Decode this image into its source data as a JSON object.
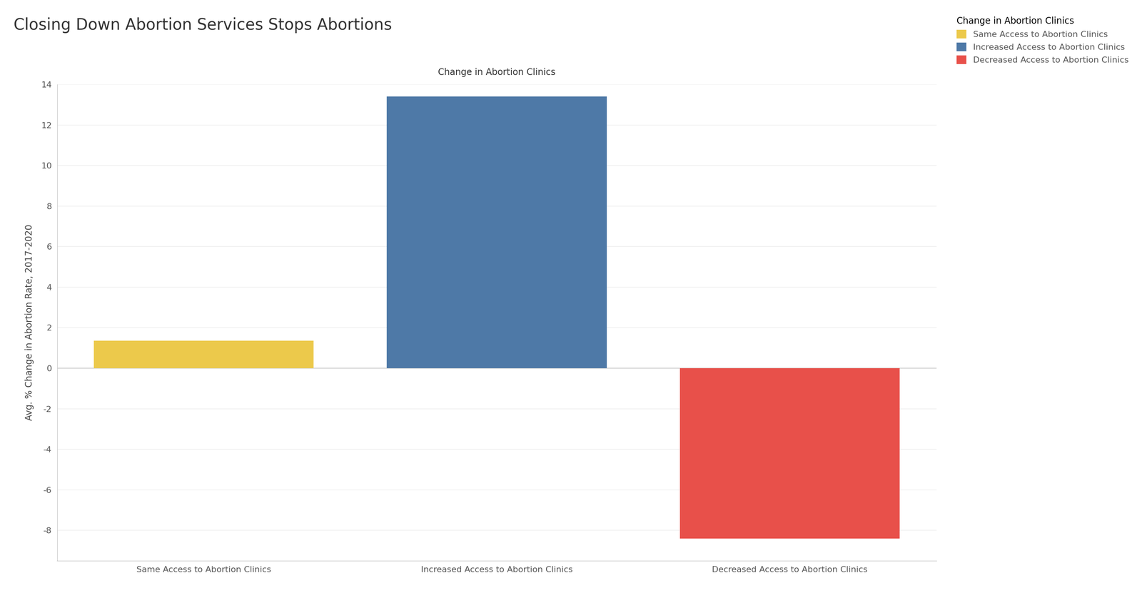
{
  "chart_data": {
    "type": "bar",
    "title": "Closing Down Abortion Services Stops Abortions",
    "x_label": "Change in Abortion Clinics",
    "y_label": "Avg. % Change in Abortion Rate, 2017-2020",
    "categories": [
      "Same Access to Abortion Clinics",
      "Increased Access to Abortion Clinics",
      "Decreased Access to Abortion Clinics"
    ],
    "values": [
      1.35,
      13.4,
      -8.4
    ],
    "colors": [
      "#ECC94B",
      "#4E79A7",
      "#E8504A"
    ],
    "ylim": [
      -9.5,
      14
    ],
    "yticks": [
      -8,
      -6,
      -4,
      -2,
      0,
      2,
      4,
      6,
      8,
      10,
      12,
      14
    ],
    "grid": true,
    "legend": "upper right",
    "legend_title": "Change in Abortion Clinics"
  }
}
